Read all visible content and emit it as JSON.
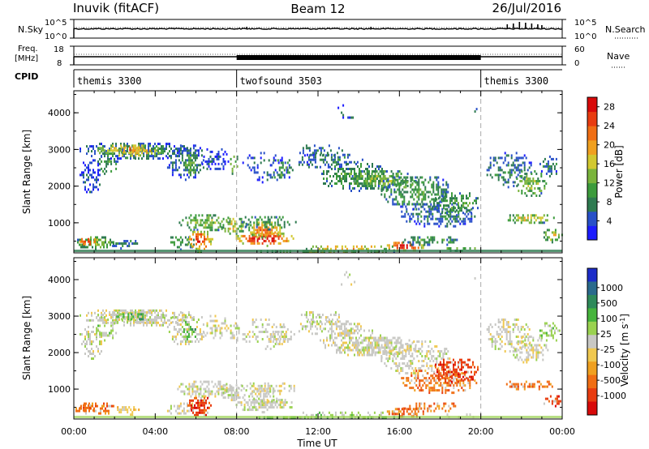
{
  "header": {
    "station": "Inuvik (fitACF)",
    "beam": "Beam 12",
    "date": "26/Jul/2016"
  },
  "strip_sky": {
    "left_label": "N.Sky",
    "right_label": "N.Search",
    "left_ticks": [
      "10^5",
      "10^0"
    ],
    "right_ticks": [
      "10^5",
      "10^0"
    ]
  },
  "strip_freq": {
    "left_label": "Freq.",
    "left_unit": "[MHz]",
    "right_label": "Nave",
    "left_ticks": [
      "18",
      "8"
    ],
    "right_ticks": [
      "60",
      "0"
    ]
  },
  "cpid": {
    "label": "CPID",
    "segments": [
      {
        "name": "themis 3300",
        "start_h": 0,
        "end_h": 8
      },
      {
        "name": "twofsound 3503",
        "start_h": 8,
        "end_h": 20
      },
      {
        "name": "themis 3300",
        "start_h": 20,
        "end_h": 24
      }
    ]
  },
  "x_axis": {
    "label": "Time UT",
    "ticks": [
      "00:00",
      "04:00",
      "08:00",
      "12:00",
      "16:00",
      "20:00",
      "00:00"
    ],
    "range_h": [
      0,
      24
    ]
  },
  "chart_data": [
    {
      "type": "heatmap",
      "name": "power",
      "ylabel": "Slant Range [km]",
      "yticks": [
        "1000",
        "2000",
        "3000",
        "4000"
      ],
      "ylim": [
        180,
        4600
      ],
      "colorbar_label": "Power [dB]",
      "colorbar_ticks": [
        "4",
        "8",
        "12",
        "16",
        "20",
        "24",
        "28"
      ],
      "colorbar_range": [
        0,
        30
      ],
      "colors": [
        "#1c1cff",
        "#2850c8",
        "#2e7a50",
        "#3c9b3c",
        "#7ab43c",
        "#d2c830",
        "#f0a020",
        "#f06e14",
        "#e83c10",
        "#d80a0a"
      ]
    },
    {
      "type": "heatmap",
      "name": "velocity",
      "ylabel": "Slant Range [km]",
      "yticks": [
        "1000",
        "2000",
        "3000",
        "4000"
      ],
      "ylim": [
        180,
        4600
      ],
      "colorbar_label": "Velocity [m s^-1]",
      "colorbar_ticks": [
        "1000",
        "500",
        "100",
        "25",
        "-25",
        "-100",
        "-500",
        "-1000"
      ],
      "colors": [
        "#1c2cc8",
        "#2a6a8c",
        "#2e8a5a",
        "#46b43c",
        "#9ad250",
        "#c8c8c4",
        "#f0c850",
        "#f0a020",
        "#f06e14",
        "#e83c10",
        "#d80a0a"
      ]
    }
  ]
}
